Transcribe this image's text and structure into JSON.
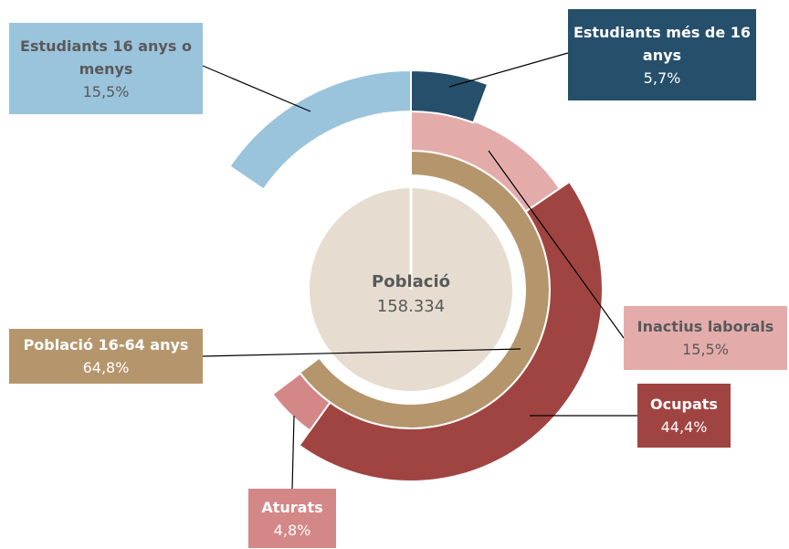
{
  "chart_data": {
    "type": "sunburst",
    "center_label": "Població",
    "total": 158334,
    "total_label": "158.334",
    "segments": [
      {
        "name": "Població 16-64 anys",
        "value": 64.8,
        "value_label": "64,8%",
        "color": "#b5966c"
      },
      {
        "name": "Inactius laborals",
        "value": 15.5,
        "value_label": "15,5%",
        "color": "#e3acab"
      },
      {
        "name": "Ocupats",
        "value": 44.4,
        "value_label": "44,4%",
        "color": "#a04442"
      },
      {
        "name": "Aturats",
        "value": 4.8,
        "value_label": "4,8%",
        "color": "#d48787"
      },
      {
        "name": "Estudiants més de 16 anys",
        "value": 5.7,
        "value_label": "5,7%",
        "color": "#264f6b"
      },
      {
        "name": "Estudiants 16 anys o menys",
        "value": 15.5,
        "value_label": "15,5%",
        "color": "#9ac3dc"
      }
    ]
  }
}
